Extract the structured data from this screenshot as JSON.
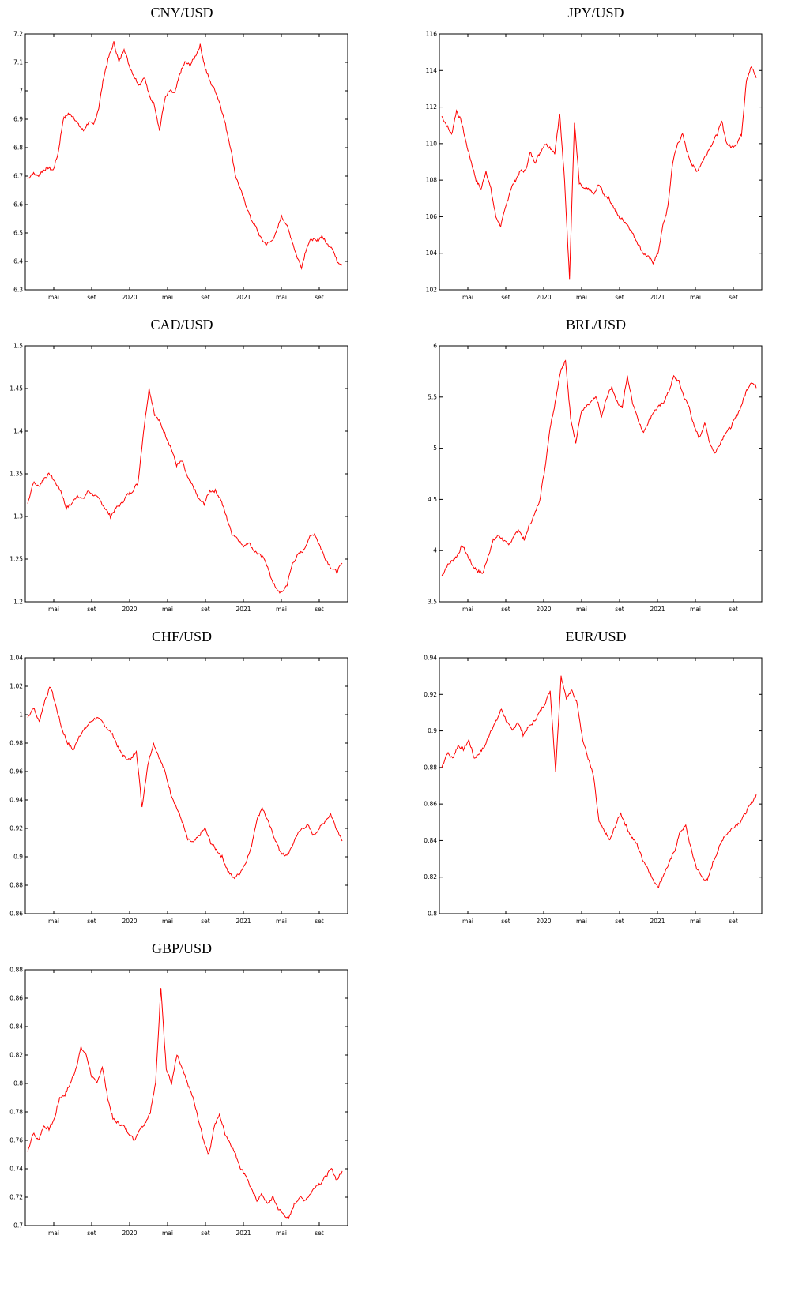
{
  "chart_data": [
    {
      "type": "line",
      "title": "CNY/USD",
      "ylim": [
        6.3,
        7.2
      ],
      "yticks": [
        "6.3",
        "6.4",
        "6.5",
        "6.6",
        "6.7",
        "6.8",
        "6.9",
        "7",
        "7.1",
        "7.2"
      ],
      "xticks": [
        "mai",
        "set",
        "2020",
        "mai",
        "set",
        "2021",
        "mai",
        "set"
      ],
      "color": "#ff0000",
      "grid": false,
      "series": [
        {
          "values": [
            6.69,
            6.71,
            6.7,
            6.72,
            6.73,
            6.72,
            6.78,
            6.9,
            6.92,
            6.91,
            6.88,
            6.86,
            6.89,
            6.88,
            6.94,
            7.05,
            7.12,
            7.17,
            7.1,
            7.15,
            7.09,
            7.05,
            7.02,
            7.05,
            6.98,
            6.95,
            6.86,
            6.97,
            7.0,
            6.99,
            7.06,
            7.1,
            7.09,
            7.12,
            7.16,
            7.08,
            7.03,
            7.0,
            6.95,
            6.88,
            6.8,
            6.7,
            6.65,
            6.6,
            6.55,
            6.52,
            6.48,
            6.46,
            6.47,
            6.5,
            6.56,
            6.53,
            6.48,
            6.42,
            6.38,
            6.45,
            6.48,
            6.47,
            6.49,
            6.46,
            6.45,
            6.4,
            6.39
          ]
        }
      ]
    },
    {
      "type": "line",
      "title": "JPY/USD",
      "ylim": [
        102,
        116
      ],
      "yticks": [
        "102",
        "104",
        "106",
        "108",
        "110",
        "112",
        "114",
        "116"
      ],
      "xticks": [
        "mai",
        "set",
        "2020",
        "mai",
        "set",
        "2021",
        "mai",
        "set"
      ],
      "color": "#ff0000",
      "grid": false,
      "series": [
        {
          "values": [
            111.5,
            111.0,
            110.5,
            111.8,
            111.2,
            110.0,
            109.0,
            108.0,
            107.5,
            108.5,
            107.5,
            106.0,
            105.5,
            106.5,
            107.5,
            108.0,
            108.5,
            108.5,
            109.5,
            109.0,
            109.5,
            110.0,
            109.8,
            109.5,
            111.6,
            108.0,
            102.6,
            111.2,
            107.8,
            107.5,
            107.5,
            107.2,
            107.8,
            107.2,
            107.0,
            106.5,
            106.0,
            105.8,
            105.5,
            105.0,
            104.5,
            104.0,
            103.8,
            103.5,
            104.0,
            105.5,
            106.5,
            109.0,
            110.0,
            110.5,
            109.5,
            108.8,
            108.5,
            109.0,
            109.5,
            110.0,
            110.5,
            111.2,
            110.0,
            109.8,
            110.0,
            110.5,
            113.5,
            114.2,
            113.6
          ]
        }
      ]
    },
    {
      "type": "line",
      "title": "CAD/USD",
      "ylim": [
        1.2,
        1.5
      ],
      "yticks": [
        "1.2",
        "1.25",
        "1.3",
        "1.35",
        "1.4",
        "1.45",
        "1.5"
      ],
      "xticks": [
        "mai",
        "set",
        "2020",
        "mai",
        "set",
        "2021",
        "mai",
        "set"
      ],
      "color": "#ff0000",
      "grid": false,
      "series": [
        {
          "values": [
            1.315,
            1.34,
            1.335,
            1.345,
            1.35,
            1.34,
            1.33,
            1.31,
            1.315,
            1.325,
            1.32,
            1.33,
            1.325,
            1.32,
            1.31,
            1.3,
            1.31,
            1.315,
            1.325,
            1.33,
            1.34,
            1.4,
            1.45,
            1.42,
            1.41,
            1.395,
            1.38,
            1.36,
            1.365,
            1.345,
            1.335,
            1.32,
            1.315,
            1.33,
            1.33,
            1.32,
            1.3,
            1.28,
            1.275,
            1.265,
            1.27,
            1.26,
            1.255,
            1.25,
            1.23,
            1.215,
            1.21,
            1.22,
            1.245,
            1.255,
            1.26,
            1.275,
            1.28,
            1.265,
            1.25,
            1.24,
            1.235,
            1.245
          ]
        }
      ]
    },
    {
      "type": "line",
      "title": "BRL/USD",
      "ylim": [
        3.5,
        6
      ],
      "yticks": [
        "3.5",
        "4",
        "4.5",
        "5",
        "5.5",
        "6"
      ],
      "xticks": [
        "mai",
        "set",
        "2020",
        "mai",
        "set",
        "2021",
        "mai",
        "set"
      ],
      "color": "#ff0000",
      "grid": false,
      "series": [
        {
          "values": [
            3.75,
            3.85,
            3.9,
            3.95,
            4.05,
            3.95,
            3.85,
            3.8,
            3.78,
            3.95,
            4.1,
            4.15,
            4.1,
            4.05,
            4.15,
            4.2,
            4.1,
            4.25,
            4.35,
            4.5,
            4.8,
            5.2,
            5.45,
            5.75,
            5.85,
            5.3,
            5.05,
            5.35,
            5.4,
            5.45,
            5.5,
            5.3,
            5.5,
            5.6,
            5.45,
            5.4,
            5.7,
            5.45,
            5.3,
            5.15,
            5.25,
            5.35,
            5.4,
            5.45,
            5.55,
            5.7,
            5.65,
            5.5,
            5.4,
            5.2,
            5.1,
            5.25,
            5.05,
            4.95,
            5.05,
            5.15,
            5.2,
            5.3,
            5.4,
            5.55,
            5.65,
            5.6
          ]
        }
      ]
    },
    {
      "type": "line",
      "title": "CHF/USD",
      "ylim": [
        0.86,
        1.04
      ],
      "yticks": [
        "0.86",
        "0.88",
        "0.9",
        "0.92",
        "0.94",
        "0.96",
        "0.98",
        "1",
        "1.02",
        "1.04"
      ],
      "xticks": [
        "mai",
        "set",
        "2020",
        "mai",
        "set",
        "2021",
        "mai",
        "set"
      ],
      "color": "#ff0000",
      "grid": false,
      "series": [
        {
          "values": [
            0.998,
            1.005,
            0.995,
            1.01,
            1.02,
            1.005,
            0.99,
            0.98,
            0.975,
            0.985,
            0.99,
            0.995,
            0.998,
            0.995,
            0.99,
            0.985,
            0.975,
            0.97,
            0.968,
            0.975,
            0.935,
            0.965,
            0.98,
            0.97,
            0.96,
            0.945,
            0.935,
            0.925,
            0.912,
            0.91,
            0.915,
            0.92,
            0.91,
            0.905,
            0.9,
            0.89,
            0.885,
            0.888,
            0.895,
            0.905,
            0.925,
            0.935,
            0.925,
            0.915,
            0.905,
            0.9,
            0.905,
            0.915,
            0.92,
            0.922,
            0.915,
            0.92,
            0.925,
            0.93,
            0.92,
            0.912
          ]
        }
      ]
    },
    {
      "type": "line",
      "title": "EUR/USD",
      "ylim": [
        0.8,
        0.94
      ],
      "yticks": [
        "0.8",
        "0.82",
        "0.84",
        "0.86",
        "0.88",
        "0.9",
        "0.92",
        "0.94"
      ],
      "xticks": [
        "mai",
        "set",
        "2020",
        "mai",
        "set",
        "2021",
        "mai",
        "set"
      ],
      "color": "#ff0000",
      "grid": false,
      "series": [
        {
          "values": [
            0.88,
            0.888,
            0.885,
            0.892,
            0.89,
            0.895,
            0.885,
            0.888,
            0.892,
            0.9,
            0.905,
            0.912,
            0.905,
            0.9,
            0.905,
            0.898,
            0.902,
            0.905,
            0.91,
            0.915,
            0.922,
            0.878,
            0.93,
            0.918,
            0.922,
            0.915,
            0.895,
            0.885,
            0.875,
            0.85,
            0.845,
            0.84,
            0.848,
            0.855,
            0.848,
            0.842,
            0.838,
            0.83,
            0.825,
            0.818,
            0.815,
            0.822,
            0.828,
            0.835,
            0.845,
            0.848,
            0.835,
            0.825,
            0.82,
            0.818,
            0.828,
            0.835,
            0.842,
            0.845,
            0.848,
            0.85,
            0.855,
            0.86,
            0.865
          ]
        }
      ]
    },
    {
      "type": "line",
      "title": "GBP/USD",
      "ylim": [
        0.7,
        0.88
      ],
      "yticks": [
        "0.7",
        "0.72",
        "0.74",
        "0.76",
        "0.78",
        "0.8",
        "0.82",
        "0.84",
        "0.86",
        "0.88"
      ],
      "xticks": [
        "mai",
        "set",
        "2020",
        "mai",
        "set",
        "2021",
        "mai",
        "set"
      ],
      "color": "#ff0000",
      "grid": false,
      "series": [
        {
          "values": [
            0.752,
            0.765,
            0.76,
            0.77,
            0.768,
            0.775,
            0.79,
            0.792,
            0.8,
            0.81,
            0.825,
            0.82,
            0.805,
            0.8,
            0.812,
            0.79,
            0.775,
            0.772,
            0.77,
            0.765,
            0.76,
            0.768,
            0.772,
            0.78,
            0.8,
            0.868,
            0.81,
            0.8,
            0.82,
            0.81,
            0.8,
            0.79,
            0.775,
            0.76,
            0.75,
            0.77,
            0.778,
            0.765,
            0.758,
            0.75,
            0.74,
            0.735,
            0.725,
            0.718,
            0.722,
            0.715,
            0.72,
            0.712,
            0.708,
            0.705,
            0.715,
            0.72,
            0.718,
            0.722,
            0.728,
            0.73,
            0.735,
            0.74,
            0.732,
            0.738
          ]
        }
      ]
    }
  ]
}
